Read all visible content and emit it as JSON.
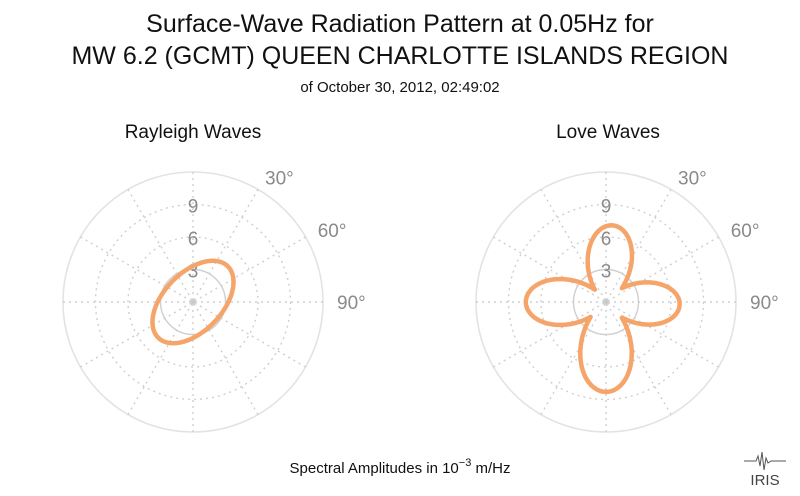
{
  "chart_data": [
    {
      "type": "polar",
      "title": "Surface-Wave Radiation Pattern at 0.05Hz for",
      "subtitle": "MW 6.2 (GCMT) QUEEN CHARLOTTE ISLANDS REGION",
      "date_line": "of October 30, 2012, 02:49:02",
      "panel_title": "Rayleigh Waves",
      "radial_ticks": [
        "3",
        "6",
        "9"
      ],
      "radial_tick_values": [
        3,
        6,
        9
      ],
      "rmax": 12,
      "angle_labels": [
        "30°",
        "60°",
        "90°"
      ],
      "angle_label_values": [
        30,
        60,
        90
      ],
      "grid": true,
      "series": [
        {
          "color": "#f5a46a",
          "model": "rayleigh",
          "amplitude_max": 4.6,
          "amplitude_min": 2.7,
          "max_direction_deg": 44
        }
      ]
    },
    {
      "type": "polar",
      "panel_title": "Love Waves",
      "radial_ticks": [
        "3",
        "6",
        "9"
      ],
      "radial_tick_values": [
        3,
        6,
        9
      ],
      "rmax": 12,
      "angle_labels": [
        "30°",
        "60°",
        "90°"
      ],
      "angle_label_values": [
        30,
        60,
        90
      ],
      "grid": true,
      "series": [
        {
          "color": "#f5a46a",
          "model": "love",
          "lobes": [
            {
              "direction_deg": 5,
              "amplitude": 7.1
            },
            {
              "direction_deg": 92,
              "amplitude": 6.8
            },
            {
              "direction_deg": 180,
              "amplitude": 8.3
            },
            {
              "direction_deg": 270,
              "amplitude": 7.4
            }
          ]
        }
      ]
    }
  ],
  "footer": {
    "xlabel_prefix": "Spectral Amplitudes in 10",
    "xlabel_exponent": "−3",
    "xlabel_suffix": " m/Hz"
  },
  "logo": {
    "text": "IRIS"
  }
}
